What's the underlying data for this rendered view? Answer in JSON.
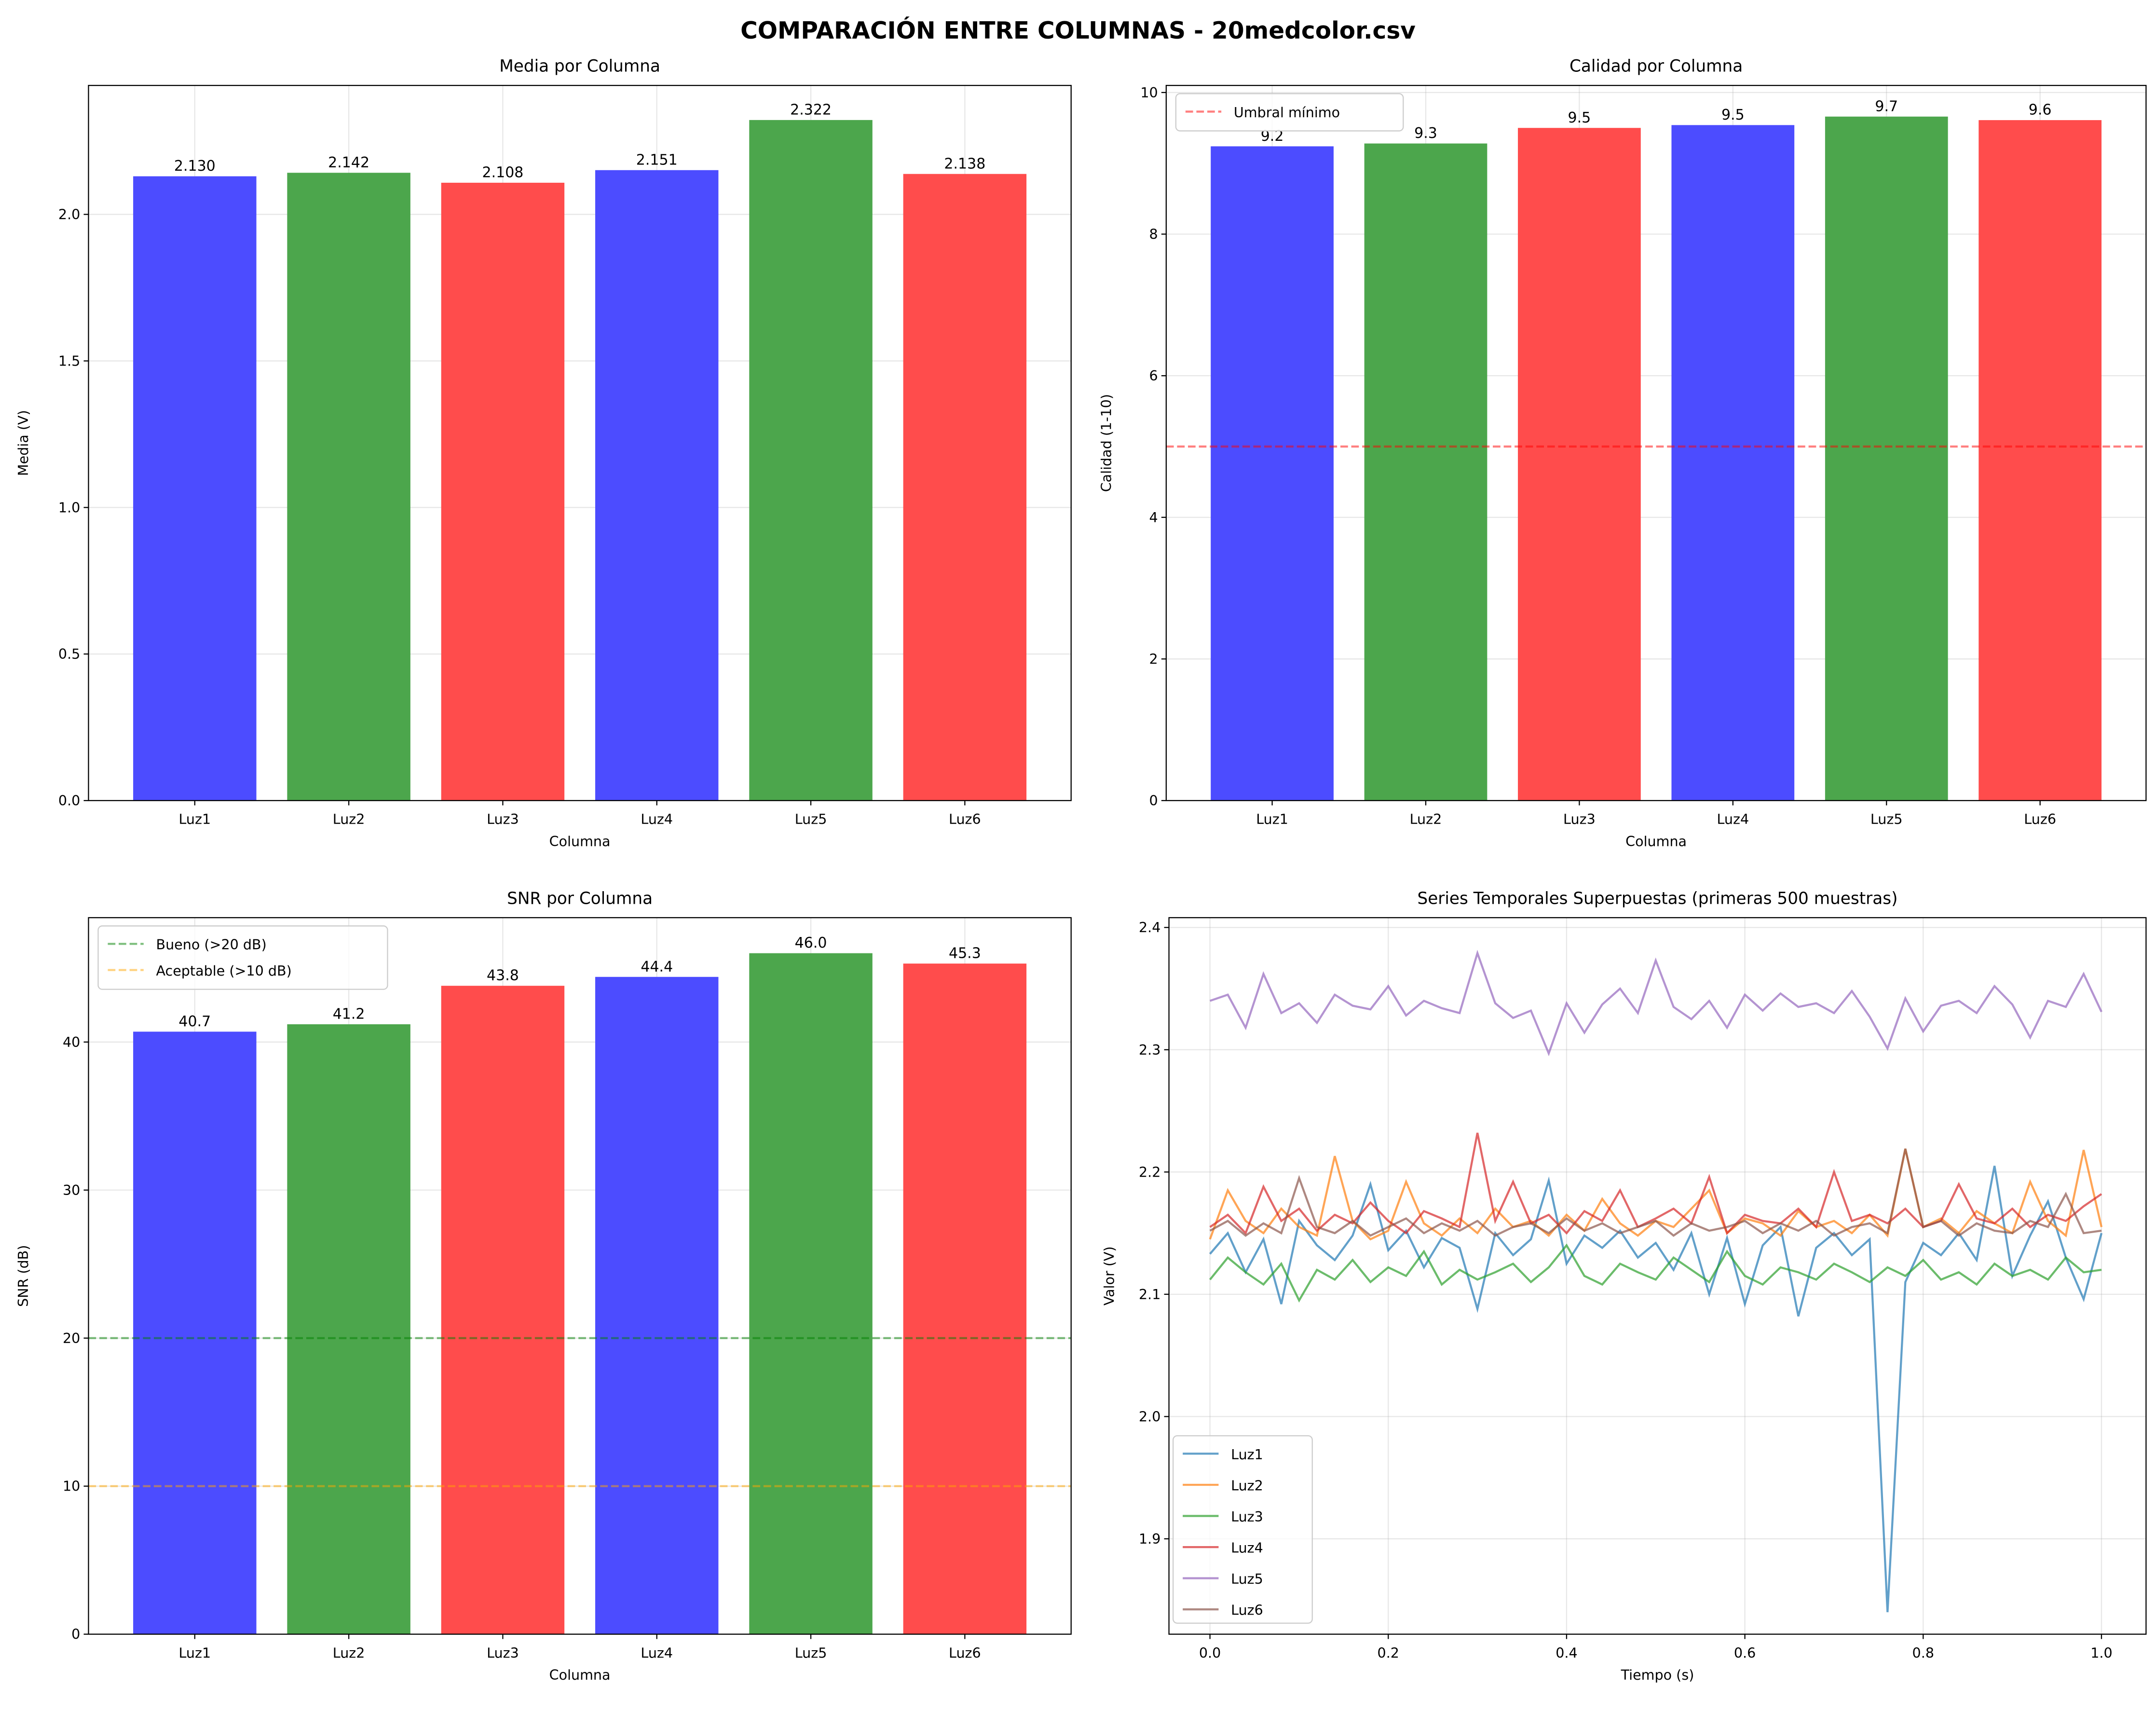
{
  "suptitle": "COMPARACIÓN ENTRE COLUMNAS - 20medcolor.csv",
  "chart_data": [
    {
      "type": "bar",
      "title": "Media por Columna",
      "xlabel": "Columna",
      "ylabel": "Media (V)",
      "categories": [
        "Luz1",
        "Luz2",
        "Luz3",
        "Luz4",
        "Luz5",
        "Luz6"
      ],
      "values": [
        2.13,
        2.142,
        2.108,
        2.151,
        2.322,
        2.138
      ],
      "data_labels": [
        "2.130",
        "2.142",
        "2.108",
        "2.151",
        "2.322",
        "2.138"
      ],
      "bar_colors": [
        "#4c4cff",
        "#4ca64c",
        "#ff4c4c",
        "#4c4cff",
        "#4ca64c",
        "#ff4c4c"
      ],
      "ylim": [
        0,
        2.44
      ],
      "yticks": [
        0,
        0.5,
        1.0,
        1.5,
        2.0
      ],
      "ytick_labels": [
        "0.0",
        "0.5",
        "1.0",
        "1.5",
        "2.0"
      ],
      "grid": true
    },
    {
      "type": "bar",
      "title": "Calidad por Columna",
      "xlabel": "Columna",
      "ylabel": "Calidad (1-10)",
      "categories": [
        "Luz1",
        "Luz2",
        "Luz3",
        "Luz4",
        "Luz5",
        "Luz6"
      ],
      "values": [
        9.24,
        9.28,
        9.5,
        9.54,
        9.66,
        9.61
      ],
      "data_labels": [
        "9.2",
        "9.3",
        "9.5",
        "9.5",
        "9.7",
        "9.6"
      ],
      "bar_colors": [
        "#4c4cff",
        "#4ca64c",
        "#ff4c4c",
        "#4c4cff",
        "#4ca64c",
        "#ff4c4c"
      ],
      "ylim": [
        0,
        10.1
      ],
      "yticks": [
        0,
        2,
        4,
        6,
        8,
        10
      ],
      "ytick_labels": [
        "0",
        "2",
        "4",
        "6",
        "8",
        "10"
      ],
      "hlines": [
        {
          "y": 5,
          "color": "#ff0000",
          "label": "Umbral mínimo"
        }
      ],
      "legend": "top-left",
      "grid": true
    },
    {
      "type": "bar",
      "title": "SNR por Columna",
      "xlabel": "Columna",
      "ylabel": "SNR (dB)",
      "categories": [
        "Luz1",
        "Luz2",
        "Luz3",
        "Luz4",
        "Luz5",
        "Luz6"
      ],
      "values": [
        40.7,
        41.2,
        43.8,
        44.4,
        46.0,
        45.3
      ],
      "data_labels": [
        "40.7",
        "41.2",
        "43.8",
        "44.4",
        "46.0",
        "45.3"
      ],
      "bar_colors": [
        "#4c4cff",
        "#4ca64c",
        "#ff4c4c",
        "#4c4cff",
        "#4ca64c",
        "#ff4c4c"
      ],
      "ylim": [
        0,
        48.4
      ],
      "yticks": [
        0,
        10,
        20,
        30,
        40
      ],
      "ytick_labels": [
        "0",
        "10",
        "20",
        "30",
        "40"
      ],
      "hlines": [
        {
          "y": 20,
          "color": "#008000",
          "label": "Bueno (>20 dB)"
        },
        {
          "y": 10,
          "color": "#ffa500",
          "label": "Aceptable (>10 dB)"
        }
      ],
      "legend": "top-left",
      "grid": true
    },
    {
      "type": "line",
      "title": "Series Temporales Superpuestas (primeras 500 muestras)",
      "xlabel": "Tiempo (s)",
      "ylabel": "Valor (V)",
      "xlim": [
        -0.046,
        1.05
      ],
      "ylim": [
        1.822,
        2.408
      ],
      "xticks": [
        0,
        0.2,
        0.4,
        0.6,
        0.8,
        1.0
      ],
      "xtick_labels": [
        "0.0",
        "0.2",
        "0.4",
        "0.6",
        "0.8",
        "1.0"
      ],
      "yticks": [
        1.9,
        2.0,
        2.1,
        2.2,
        2.3,
        2.4
      ],
      "ytick_labels": [
        "1.9",
        "2.0",
        "2.1",
        "2.2",
        "2.3",
        "2.4"
      ],
      "legend": "lower-left",
      "grid": true,
      "x": [
        0,
        0.02,
        0.04,
        0.06,
        0.08,
        0.1,
        0.12,
        0.14,
        0.16,
        0.18,
        0.2,
        0.22,
        0.24,
        0.26,
        0.28,
        0.3,
        0.32,
        0.34,
        0.36,
        0.38,
        0.4,
        0.42,
        0.44,
        0.46,
        0.48,
        0.5,
        0.52,
        0.54,
        0.56,
        0.58,
        0.6,
        0.62,
        0.64,
        0.66,
        0.68,
        0.7,
        0.72,
        0.74,
        0.76,
        0.78,
        0.8,
        0.82,
        0.84,
        0.86,
        0.88,
        0.9,
        0.92,
        0.94,
        0.96,
        0.98,
        1.0
      ],
      "series": [
        {
          "name": "Luz1",
          "color": "#1f77b4",
          "values": [
            2.133,
            2.15,
            2.118,
            2.145,
            2.092,
            2.16,
            2.14,
            2.128,
            2.148,
            2.19,
            2.136,
            2.152,
            2.122,
            2.146,
            2.138,
            2.088,
            2.15,
            2.132,
            2.145,
            2.193,
            2.125,
            2.148,
            2.138,
            2.152,
            2.13,
            2.142,
            2.12,
            2.15,
            2.1,
            2.146,
            2.092,
            2.14,
            2.155,
            2.082,
            2.138,
            2.15,
            2.132,
            2.145,
            1.84,
            2.11,
            2.142,
            2.132,
            2.15,
            2.128,
            2.205,
            2.115,
            2.148,
            2.176,
            2.13,
            2.096,
            2.15
          ]
        },
        {
          "name": "Luz2",
          "color": "#ff7f0e",
          "values": [
            2.145,
            2.185,
            2.16,
            2.15,
            2.17,
            2.155,
            2.148,
            2.213,
            2.16,
            2.145,
            2.152,
            2.192,
            2.158,
            2.148,
            2.162,
            2.15,
            2.17,
            2.155,
            2.16,
            2.148,
            2.165,
            2.152,
            2.178,
            2.158,
            2.148,
            2.16,
            2.155,
            2.17,
            2.185,
            2.15,
            2.162,
            2.158,
            2.148,
            2.168,
            2.155,
            2.16,
            2.15,
            2.165,
            2.148,
            2.219,
            2.155,
            2.162,
            2.15,
            2.168,
            2.158,
            2.15,
            2.192,
            2.16,
            2.148,
            2.218,
            2.155
          ]
        },
        {
          "name": "Luz3",
          "color": "#2ca02c",
          "values": [
            2.112,
            2.13,
            2.118,
            2.108,
            2.125,
            2.095,
            2.12,
            2.112,
            2.128,
            2.11,
            2.122,
            2.115,
            2.135,
            2.108,
            2.12,
            2.112,
            2.118,
            2.125,
            2.11,
            2.122,
            2.14,
            2.115,
            2.108,
            2.125,
            2.118,
            2.112,
            2.13,
            2.12,
            2.11,
            2.135,
            2.115,
            2.108,
            2.122,
            2.118,
            2.112,
            2.125,
            2.118,
            2.11,
            2.122,
            2.115,
            2.128,
            2.112,
            2.118,
            2.108,
            2.125,
            2.115,
            2.12,
            2.112,
            2.13,
            2.118,
            2.12
          ]
        },
        {
          "name": "Luz4",
          "color": "#d62728",
          "values": [
            2.155,
            2.165,
            2.15,
            2.188,
            2.16,
            2.17,
            2.152,
            2.165,
            2.158,
            2.175,
            2.16,
            2.15,
            2.168,
            2.162,
            2.155,
            2.232,
            2.16,
            2.192,
            2.158,
            2.165,
            2.15,
            2.168,
            2.16,
            2.185,
            2.155,
            2.162,
            2.17,
            2.158,
            2.196,
            2.15,
            2.165,
            2.16,
            2.158,
            2.17,
            2.155,
            2.2,
            2.16,
            2.165,
            2.158,
            2.17,
            2.155,
            2.16,
            2.19,
            2.162,
            2.158,
            2.17,
            2.155,
            2.165,
            2.16,
            2.172,
            2.182
          ]
        },
        {
          "name": "Luz5",
          "color": "#9467bd",
          "values": [
            2.34,
            2.345,
            2.318,
            2.362,
            2.33,
            2.338,
            2.322,
            2.345,
            2.336,
            2.333,
            2.352,
            2.328,
            2.34,
            2.334,
            2.33,
            2.379,
            2.338,
            2.326,
            2.332,
            2.297,
            2.338,
            2.314,
            2.337,
            2.35,
            2.33,
            2.373,
            2.335,
            2.325,
            2.34,
            2.318,
            2.345,
            2.332,
            2.346,
            2.335,
            2.338,
            2.33,
            2.348,
            2.327,
            2.301,
            2.342,
            2.315,
            2.336,
            2.34,
            2.33,
            2.352,
            2.337,
            2.31,
            2.34,
            2.335,
            2.362,
            2.331
          ]
        },
        {
          "name": "Luz6",
          "color": "#8c564b",
          "values": [
            2.152,
            2.16,
            2.148,
            2.158,
            2.15,
            2.195,
            2.155,
            2.15,
            2.16,
            2.148,
            2.155,
            2.162,
            2.15,
            2.158,
            2.152,
            2.16,
            2.148,
            2.155,
            2.158,
            2.15,
            2.162,
            2.152,
            2.158,
            2.15,
            2.155,
            2.16,
            2.148,
            2.158,
            2.152,
            2.155,
            2.16,
            2.15,
            2.158,
            2.152,
            2.16,
            2.148,
            2.155,
            2.158,
            2.15,
            2.219,
            2.155,
            2.16,
            2.148,
            2.158,
            2.152,
            2.15,
            2.16,
            2.155,
            2.182,
            2.15,
            2.152
          ]
        }
      ]
    }
  ]
}
